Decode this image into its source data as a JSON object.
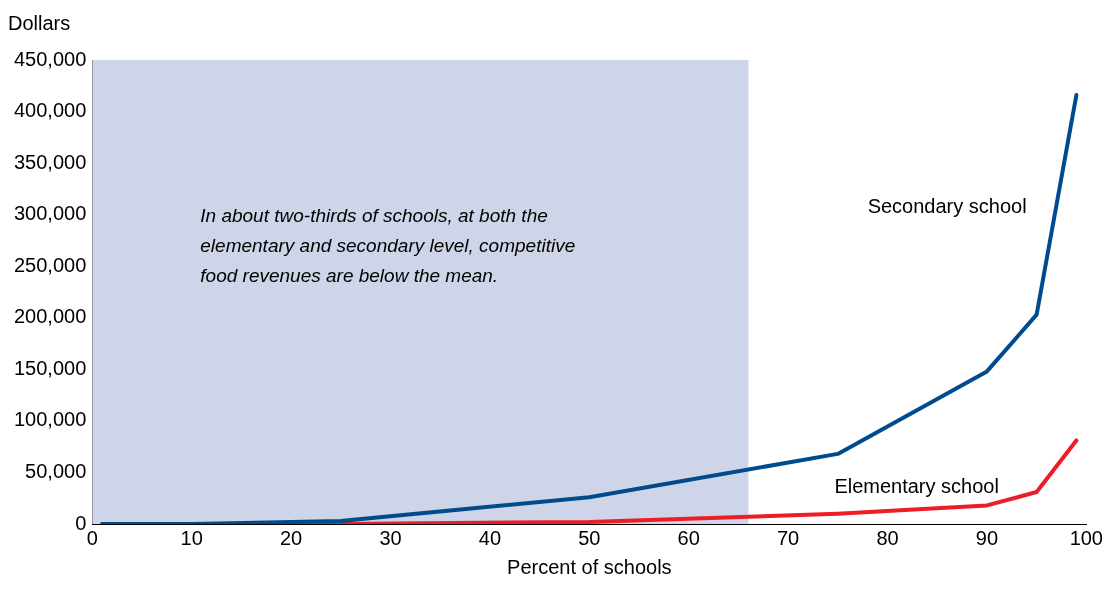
{
  "chart_data": {
    "type": "line",
    "ylabel": "Dollars",
    "xlabel": "Percent of schools",
    "xlim": [
      0,
      100
    ],
    "xticks": [
      0,
      10,
      20,
      30,
      40,
      50,
      60,
      70,
      80,
      90,
      100
    ],
    "ylim": [
      0,
      450000
    ],
    "yticks": [
      0,
      {
        "value": 50000,
        "label": "50,000"
      },
      {
        "value": 100000,
        "label": "100,000"
      },
      {
        "value": 150000,
        "label": "150,000"
      },
      {
        "value": 200000,
        "label": "200,000"
      },
      {
        "value": 250000,
        "label": "250,000"
      },
      {
        "value": 300000,
        "label": "300,000"
      },
      {
        "value": 350000,
        "label": "350,000"
      },
      {
        "value": 400000,
        "label": "400,000"
      },
      {
        "value": 450000,
        "label": "450,000"
      }
    ],
    "x": [
      1,
      10,
      25,
      50,
      75,
      90,
      95,
      99
    ],
    "series": [
      {
        "name": "Secondary school",
        "color": "#004b8d",
        "values": [
          0,
          0,
          3000,
          26000,
          68000,
          148000,
          203000,
          416000
        ]
      },
      {
        "name": "Elementary school",
        "color": "#ee1c25",
        "values": [
          0,
          0,
          0,
          2000,
          10000,
          18000,
          31000,
          81000
        ]
      }
    ],
    "bands": [
      {
        "axis": "x",
        "from": 0,
        "to": 66,
        "label": "In about two-thirds of schools, at both the elementary and secondary level, competitive food revenues are below the mean.",
        "color": "#cfd5e8"
      }
    ],
    "grid": false,
    "legend": false,
    "marker": "none",
    "line_style": "solid"
  }
}
